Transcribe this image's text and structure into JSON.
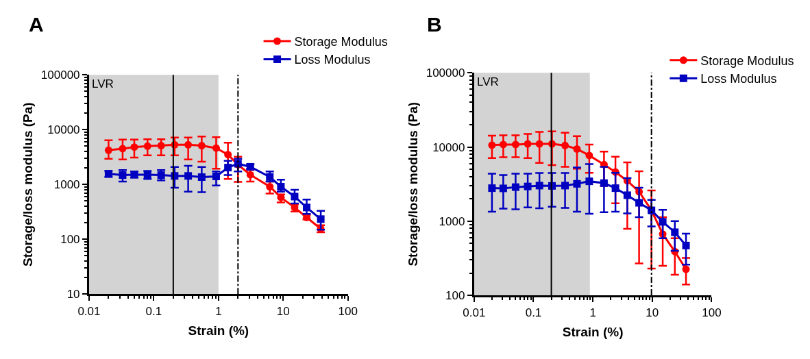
{
  "chart_data": [
    {
      "type": "line",
      "title": "A",
      "xlabel": "Strain (%)",
      "ylabel": "Storage/loss modulus (Pa)",
      "log": "xy",
      "xlim": [
        0.01,
        100
      ],
      "xticks": [
        0.01,
        0.1,
        1,
        10,
        100
      ],
      "ylim": [
        10,
        100000
      ],
      "yticks": [
        10,
        100,
        1000,
        10000,
        100000
      ],
      "grid": false,
      "legend": "top right",
      "line_style": "solid",
      "bands": [
        {
          "axis": "x",
          "from": 0.01,
          "to": 1,
          "label": "LVR",
          "color": "#d3d3d3"
        }
      ],
      "ref_lines": [
        {
          "axis": "x",
          "value": 0.2,
          "color": "#000000",
          "line_style": "solid"
        },
        {
          "axis": "x",
          "value": 2,
          "color": "#000000",
          "line_style": "dashdot"
        }
      ],
      "series": [
        {
          "name": "Storage Modulus",
          "color": "#ff0000",
          "marker": "circle",
          "x": [
            0.02,
            0.033,
            0.05,
            0.08,
            0.13,
            0.21,
            0.34,
            0.55,
            0.92,
            1.4,
            2,
            3.1,
            6.2,
            9.2,
            15,
            23,
            38
          ],
          "values": [
            4200,
            4500,
            4800,
            5000,
            5100,
            5300,
            5300,
            5100,
            4600,
            3500,
            2300,
            1500,
            910,
            580,
            380,
            250,
            155
          ],
          "errors": [
            [
              2950,
              6400
            ],
            [
              2860,
              6600
            ],
            [
              3100,
              6600
            ],
            [
              3400,
              6700
            ],
            [
              3400,
              6700
            ],
            [
              3400,
              7200
            ],
            [
              2860,
              7200
            ],
            [
              2600,
              7500
            ],
            [
              1930,
              7300
            ],
            [
              1260,
              5800
            ],
            [
              1110,
              3200
            ],
            [
              1130,
              1830
            ],
            [
              680,
              1130
            ],
            [
              470,
              660
            ],
            [
              320,
              430
            ],
            [
              230,
              280
            ],
            [
              134,
              180
            ]
          ]
        },
        {
          "name": "Loss Modulus",
          "color": "#0000c0",
          "marker": "square",
          "x": [
            0.02,
            0.033,
            0.05,
            0.08,
            0.13,
            0.21,
            0.34,
            0.55,
            0.92,
            1.4,
            2,
            3.1,
            6.2,
            9.2,
            15,
            23,
            38
          ],
          "values": [
            1560,
            1480,
            1510,
            1510,
            1480,
            1430,
            1430,
            1360,
            1400,
            2030,
            2390,
            2100,
            1370,
            910,
            600,
            380,
            233
          ],
          "errors": [
            [
              1370,
              1770
            ],
            [
              1130,
              1830
            ],
            [
              1330,
              1730
            ],
            [
              1260,
              1770
            ],
            [
              1190,
              1830
            ],
            [
              870,
              2080
            ],
            [
              740,
              2190
            ],
            [
              720,
              2080
            ],
            [
              960,
              1730
            ],
            [
              1480,
              2700
            ],
            [
              1730,
              2950
            ],
            [
              1930,
              2330
            ],
            [
              1130,
              1730
            ],
            [
              740,
              1220
            ],
            [
              450,
              800
            ],
            [
              290,
              530
            ],
            [
              149,
              330
            ]
          ]
        }
      ]
    },
    {
      "type": "line",
      "title": "B",
      "xlabel": "Strain (%)",
      "ylabel": "Storage/loss modulus (Pa)",
      "log": "xy",
      "xlim": [
        0.01,
        100
      ],
      "xticks": [
        0.01,
        0.1,
        1,
        10,
        100
      ],
      "ylim": [
        100,
        100000
      ],
      "yticks": [
        100,
        1000,
        10000,
        100000
      ],
      "grid": false,
      "legend": "top right",
      "line_style": "solid",
      "bands": [
        {
          "axis": "x",
          "from": 0.01,
          "to": 0.89,
          "label": "LVR",
          "color": "#d3d3d3"
        }
      ],
      "ref_lines": [
        {
          "axis": "x",
          "value": 0.2,
          "color": "#000000",
          "line_style": "solid"
        },
        {
          "axis": "x",
          "value": 9.7,
          "color": "#000000",
          "line_style": "dashdot"
        }
      ],
      "series": [
        {
          "name": "Storage Modulus",
          "color": "#ff0000",
          "marker": "circle",
          "x": [
            0.02,
            0.031,
            0.05,
            0.08,
            0.126,
            0.205,
            0.34,
            0.54,
            0.87,
            1.54,
            2.4,
            3.8,
            6,
            9.7,
            15,
            24,
            37
          ],
          "values": [
            10600,
            10800,
            10800,
            11000,
            11000,
            11000,
            10500,
            9400,
            7700,
            5800,
            4600,
            3500,
            2500,
            1400,
            670,
            390,
            225
          ],
          "errors": [
            [
              7100,
              14200
            ],
            [
              7300,
              14400
            ],
            [
              7300,
              14400
            ],
            [
              7100,
              15000
            ],
            [
              6100,
              16000
            ],
            [
              5700,
              16300
            ],
            [
              5400,
              15600
            ],
            [
              5100,
              14000
            ],
            [
              4500,
              10800
            ],
            [
              3000,
              8700
            ],
            [
              1740,
              7400
            ],
            [
              790,
              6200
            ],
            [
              270,
              4700
            ],
            [
              230,
              2600
            ],
            [
              250,
              1130
            ],
            [
              190,
              590
            ],
            [
              140,
              320
            ]
          ]
        },
        {
          "name": "Loss Modulus",
          "color": "#0000c0",
          "marker": "square",
          "x": [
            0.02,
            0.031,
            0.05,
            0.08,
            0.126,
            0.205,
            0.34,
            0.54,
            0.87,
            1.54,
            2.4,
            3.8,
            6,
            9.7,
            15,
            24,
            37
          ],
          "values": [
            2790,
            2770,
            2880,
            2940,
            3020,
            2990,
            3020,
            3190,
            3450,
            3260,
            2790,
            2240,
            1770,
            1400,
            980,
            710,
            470
          ],
          "errors": [
            [
              1340,
              4370
            ],
            [
              1480,
              4200
            ],
            [
              1450,
              4370
            ],
            [
              1530,
              4370
            ],
            [
              1490,
              4470
            ],
            [
              1570,
              4470
            ],
            [
              1510,
              4470
            ],
            [
              1340,
              5300
            ],
            [
              1260,
              5900
            ],
            [
              1320,
              5400
            ],
            [
              1340,
              4500
            ],
            [
              1270,
              3800
            ],
            [
              1130,
              2830
            ],
            [
              850,
              1940
            ],
            [
              590,
              1420
            ],
            [
              400,
              1000
            ],
            [
              260,
              680
            ]
          ]
        }
      ]
    }
  ]
}
